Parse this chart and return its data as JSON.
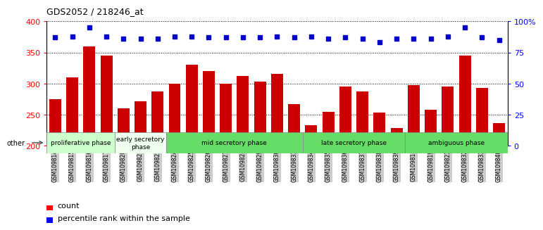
{
  "title": "GDS2052 / 218246_at",
  "samples": [
    "GSM109814",
    "GSM109815",
    "GSM109816",
    "GSM109817",
    "GSM109820",
    "GSM109821",
    "GSM109822",
    "GSM109824",
    "GSM109825",
    "GSM109826",
    "GSM109827",
    "GSM109828",
    "GSM109829",
    "GSM109830",
    "GSM109831",
    "GSM109834",
    "GSM109835",
    "GSM109836",
    "GSM109837",
    "GSM109838",
    "GSM109839",
    "GSM109818",
    "GSM109819",
    "GSM109823",
    "GSM109832",
    "GSM109833",
    "GSM109840"
  ],
  "counts": [
    275,
    310,
    360,
    345,
    260,
    272,
    287,
    300,
    330,
    320,
    300,
    312,
    303,
    315,
    267,
    233,
    254,
    295,
    287,
    253,
    229,
    298,
    258,
    295,
    345,
    293,
    237
  ],
  "percentiles": [
    87,
    88,
    95,
    88,
    86,
    86,
    86,
    88,
    88,
    87,
    87,
    87,
    87,
    88,
    87,
    88,
    86,
    87,
    86,
    83,
    86,
    86,
    86,
    88,
    95,
    87,
    85
  ],
  "bar_color": "#cc0000",
  "dot_color": "#0000cc",
  "ylim_left": [
    200,
    400
  ],
  "ylim_right": [
    0,
    100
  ],
  "yticks_left": [
    200,
    250,
    300,
    350,
    400
  ],
  "yticks_right": [
    0,
    25,
    50,
    75,
    100
  ],
  "yticklabels_right": [
    "0",
    "25",
    "50",
    "75",
    "100%"
  ],
  "phases": [
    {
      "label": "proliferative phase",
      "start": 0,
      "end": 4,
      "color": "#ccffcc"
    },
    {
      "label": "early secretory\nphase",
      "start": 4,
      "end": 7,
      "color": "#eeffee"
    },
    {
      "label": "mid secretory phase",
      "start": 7,
      "end": 15,
      "color": "#66dd66"
    },
    {
      "label": "late secretory phase",
      "start": 15,
      "end": 21,
      "color": "#66dd66"
    },
    {
      "label": "ambiguous phase",
      "start": 21,
      "end": 27,
      "color": "#66dd66"
    }
  ],
  "plot_bg": "#ffffff",
  "tick_bg": "#cccccc",
  "other_label": "other"
}
